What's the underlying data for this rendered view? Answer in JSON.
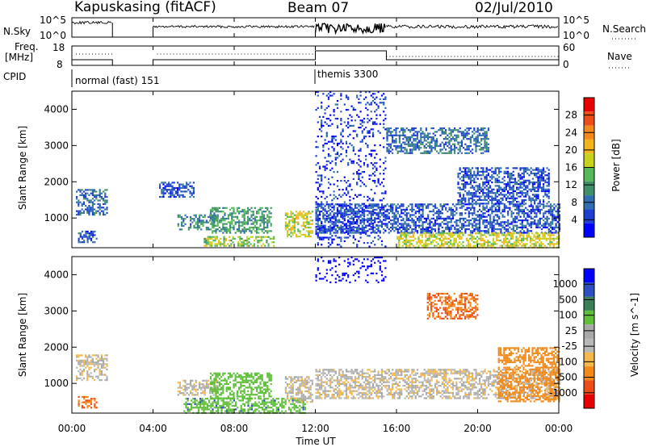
{
  "header": {
    "station": "Kapuskasing (fitACF)",
    "beam": "Beam 07",
    "date": "02/Jul/2010"
  },
  "noise_panel": {
    "left_label": "N.Sky",
    "right_label": "N.Search",
    "left_ticks": [
      "10^5",
      "10^0"
    ],
    "right_ticks": [
      "10^5",
      "10^0"
    ],
    "scale": "log"
  },
  "freq_panel": {
    "left_label_line1": "Freq.",
    "left_label_line2": "[MHz]",
    "right_label": "Nave",
    "left_ticks": [
      "18",
      "8"
    ],
    "right_ticks": [
      "60",
      "0"
    ]
  },
  "cpid": {
    "label": "CPID",
    "segments": [
      {
        "name": "normal (fast) 151",
        "start_hour": 0
      },
      {
        "name": "themis 3300",
        "start_hour": 12
      }
    ]
  },
  "x_axis": {
    "label": "Time UT",
    "ticks": [
      "00:00",
      "04:00",
      "08:00",
      "12:00",
      "16:00",
      "20:00",
      "00:00"
    ],
    "range_hours": [
      0,
      24
    ]
  },
  "chart_data": [
    {
      "type": "heatmap",
      "title": "",
      "xlabel": "Time UT",
      "ylabel": "Slant Range [km]",
      "xlim": [
        0,
        24
      ],
      "ylim": [
        180,
        4500
      ],
      "yticks": [
        1000,
        2000,
        3000,
        4000
      ],
      "colorbar": {
        "label": "Power [dB]",
        "ticks": [
          "4",
          "8",
          "12",
          "16",
          "20",
          "24",
          "28"
        ],
        "colors": [
          "#0000ff",
          "#1c3fd0",
          "#2f6fb0",
          "#3f8f6a",
          "#57b85a",
          "#c8d21c",
          "#f2b51b",
          "#f28a1b",
          "#ea4e16",
          "#e60000"
        ]
      },
      "echo_regions": [
        {
          "t_start": 0.2,
          "t_end": 1.7,
          "r_start": 1100,
          "r_end": 1800,
          "level": 8
        },
        {
          "t_start": 0.3,
          "t_end": 1.2,
          "r_start": 350,
          "r_end": 650,
          "level": 6
        },
        {
          "t_start": 4.3,
          "t_end": 6.0,
          "r_start": 1600,
          "r_end": 2000,
          "level": 6
        },
        {
          "t_start": 5.2,
          "t_end": 7.2,
          "r_start": 700,
          "r_end": 1100,
          "level": 10
        },
        {
          "t_start": 6.8,
          "t_end": 9.8,
          "r_start": 600,
          "r_end": 1300,
          "level": 12
        },
        {
          "t_start": 6.5,
          "t_end": 10.0,
          "r_start": 250,
          "r_end": 500,
          "level": 16
        },
        {
          "t_start": 10.5,
          "t_end": 11.9,
          "r_start": 500,
          "r_end": 1200,
          "level": 18
        },
        {
          "t_start": 12.0,
          "t_end": 24.0,
          "r_start": 600,
          "r_end": 1400,
          "level": 6
        },
        {
          "t_start": 16.0,
          "t_end": 24.0,
          "r_start": 200,
          "r_end": 600,
          "level": 18
        },
        {
          "t_start": 19.0,
          "t_end": 23.5,
          "r_start": 1400,
          "r_end": 2400,
          "level": 6
        },
        {
          "t_start": 15.5,
          "t_end": 20.5,
          "r_start": 2800,
          "r_end": 3500,
          "level": 8
        },
        {
          "t_start": 12.0,
          "t_end": 15.5,
          "r_start": 200,
          "r_end": 4500,
          "level": 4
        }
      ]
    },
    {
      "type": "heatmap",
      "title": "",
      "xlabel": "Time UT",
      "ylabel": "Slant Range [km]",
      "xlim": [
        0,
        24
      ],
      "ylim": [
        180,
        4500
      ],
      "yticks": [
        1000,
        2000,
        3000,
        4000
      ],
      "colorbar": {
        "label": "Velocity [m s^-1]",
        "ticks": [
          "1000",
          "500",
          "100",
          "25",
          "-25",
          "-100",
          "-500",
          "-1000"
        ],
        "colors": [
          "#0000ff",
          "#2e4fbf",
          "#3a7f55",
          "#5fbf3a",
          "#a8a8a8",
          "#b8b8b8",
          "#f5b84a",
          "#f28a1b",
          "#ea4e16",
          "#e60000"
        ]
      },
      "echo_regions": [
        {
          "t_start": 0.2,
          "t_end": 1.7,
          "r_start": 1100,
          "r_end": 1800,
          "velocity": 0
        },
        {
          "t_start": 0.3,
          "t_end": 1.2,
          "r_start": 350,
          "r_end": 650,
          "velocity": -300
        },
        {
          "t_start": 5.2,
          "t_end": 7.2,
          "r_start": 700,
          "r_end": 1100,
          "velocity": 0
        },
        {
          "t_start": 6.8,
          "t_end": 9.8,
          "r_start": 600,
          "r_end": 1300,
          "velocity": 150
        },
        {
          "t_start": 5.5,
          "t_end": 11.5,
          "r_start": 200,
          "r_end": 600,
          "velocity": 250
        },
        {
          "t_start": 10.5,
          "t_end": 11.9,
          "r_start": 500,
          "r_end": 1200,
          "velocity": 0
        },
        {
          "t_start": 12.0,
          "t_end": 24.0,
          "r_start": 600,
          "r_end": 1400,
          "velocity": 0
        },
        {
          "t_start": 21.0,
          "t_end": 24.0,
          "r_start": 500,
          "r_end": 2000,
          "velocity": -200
        },
        {
          "t_start": 17.5,
          "t_end": 20.0,
          "r_start": 2800,
          "r_end": 3500,
          "velocity": -300
        },
        {
          "t_start": 12.0,
          "t_end": 15.5,
          "r_start": 3800,
          "r_end": 4500,
          "velocity": 800
        }
      ]
    }
  ]
}
